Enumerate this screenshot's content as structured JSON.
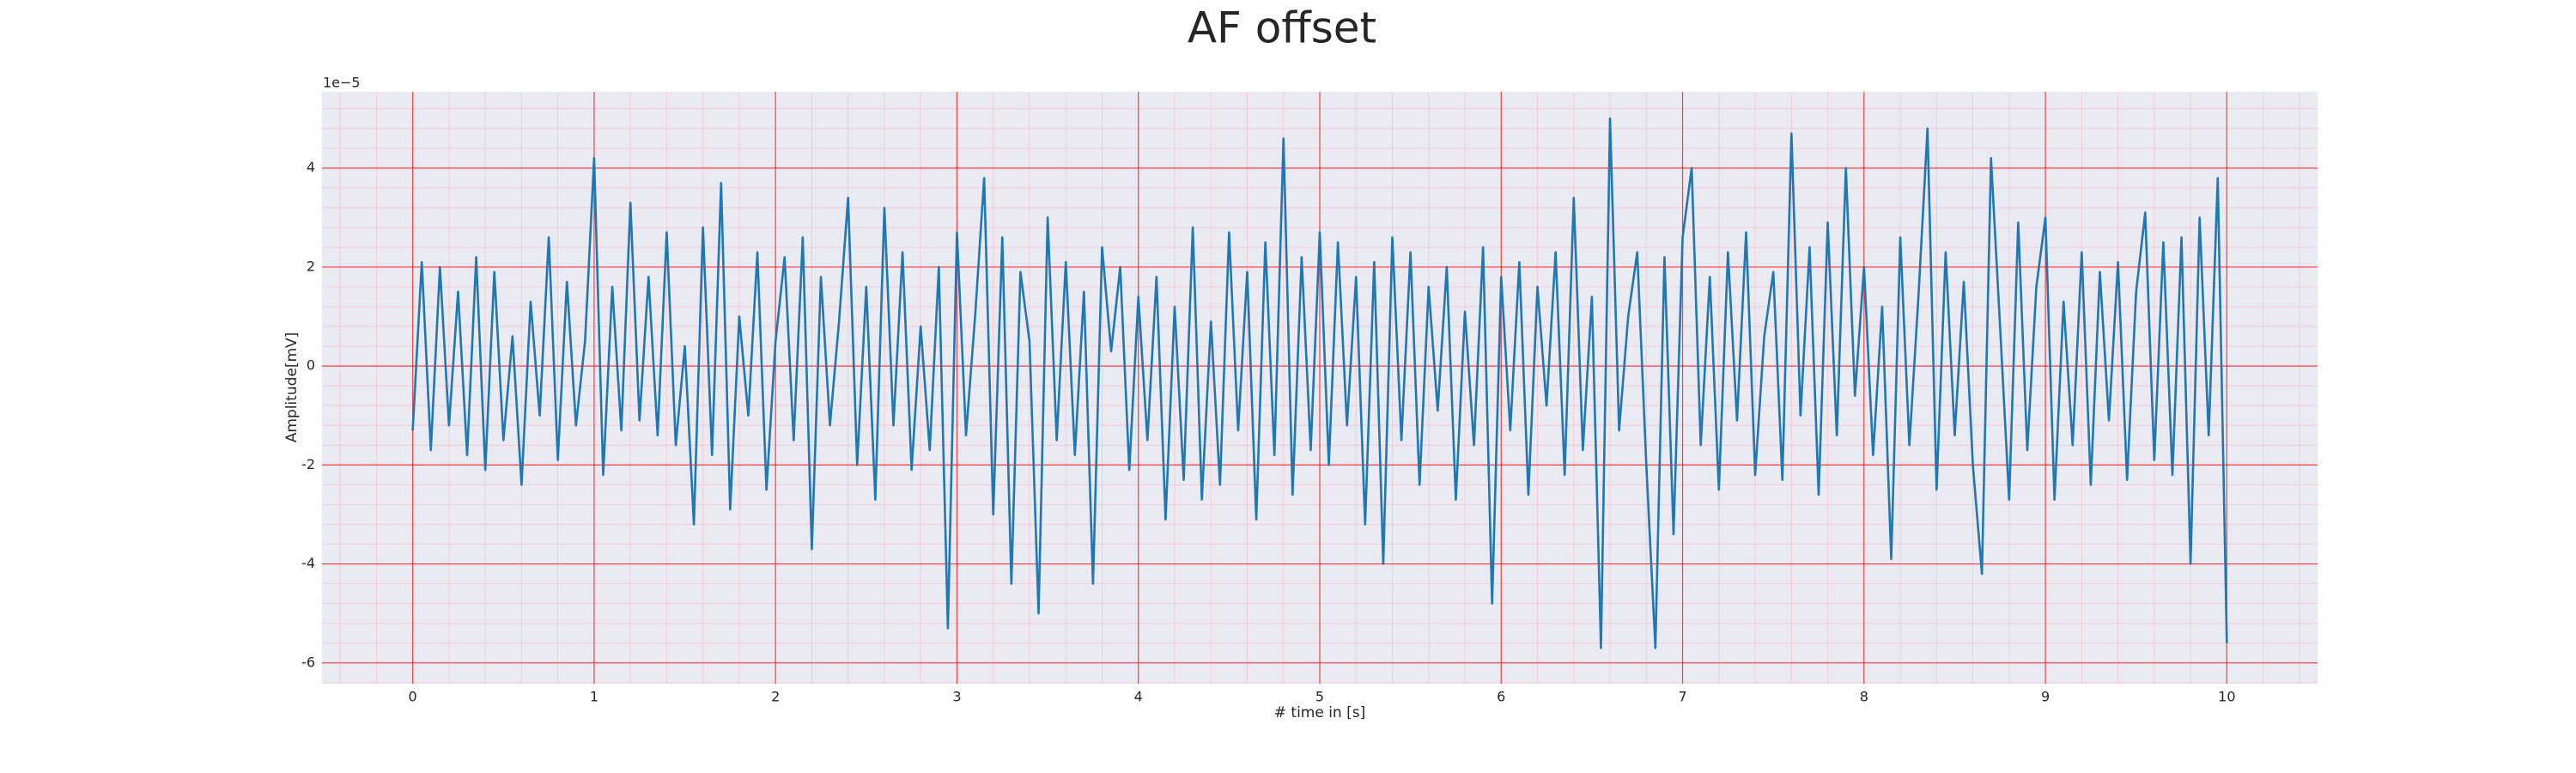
{
  "chart_data": {
    "type": "line",
    "title": "AF offset",
    "xlabel": "# time in [s]",
    "ylabel": "Amplitude[mV]",
    "y_offset_label": "1e−5",
    "xlim": [
      -0.5,
      10.5
    ],
    "ylim": [
      -6.42,
      5.54
    ],
    "xticks": [
      0,
      1,
      2,
      3,
      4,
      5,
      6,
      7,
      8,
      9,
      10
    ],
    "yticks": [
      -6,
      -4,
      -2,
      0,
      2,
      4
    ],
    "grid": true,
    "minor_grid": true,
    "grid_color": "#ff0000",
    "minor_grid_color": "#ffb6c1",
    "background": "#eaeaf2",
    "x": [
      0,
      0.05,
      0.1,
      0.15,
      0.2,
      0.25,
      0.3,
      0.35,
      0.4,
      0.45,
      0.5,
      0.55,
      0.6,
      0.65,
      0.7,
      0.75,
      0.8,
      0.85,
      0.9,
      0.95,
      1,
      1.05,
      1.1,
      1.15,
      1.2,
      1.25,
      1.3,
      1.35,
      1.4,
      1.45,
      1.5,
      1.55,
      1.6,
      1.65,
      1.7,
      1.75,
      1.8,
      1.85,
      1.9,
      1.95,
      2,
      2.05,
      2.1,
      2.15,
      2.2,
      2.25,
      2.3,
      2.35,
      2.4,
      2.45,
      2.5,
      2.55,
      2.6,
      2.65,
      2.7,
      2.75,
      2.8,
      2.85,
      2.9,
      2.95,
      3,
      3.05,
      3.1,
      3.15,
      3.2,
      3.25,
      3.3,
      3.35,
      3.4,
      3.45,
      3.5,
      3.55,
      3.6,
      3.65,
      3.7,
      3.75,
      3.8,
      3.85,
      3.9,
      3.95,
      4,
      4.05,
      4.1,
      4.15,
      4.2,
      4.25,
      4.3,
      4.35,
      4.4,
      4.45,
      4.5,
      4.55,
      4.6,
      4.65,
      4.7,
      4.75,
      4.8,
      4.85,
      4.9,
      4.95,
      5,
      5.05,
      5.1,
      5.15,
      5.2,
      5.25,
      5.3,
      5.35,
      5.4,
      5.45,
      5.5,
      5.55,
      5.6,
      5.65,
      5.7,
      5.75,
      5.8,
      5.85,
      5.9,
      5.95,
      6,
      6.05,
      6.1,
      6.15,
      6.2,
      6.25,
      6.3,
      6.35,
      6.4,
      6.45,
      6.5,
      6.55,
      6.6,
      6.65,
      6.7,
      6.75,
      6.8,
      6.85,
      6.9,
      6.95,
      7,
      7.05,
      7.1,
      7.15,
      7.2,
      7.25,
      7.3,
      7.35,
      7.4,
      7.45,
      7.5,
      7.55,
      7.6,
      7.65,
      7.7,
      7.75,
      7.8,
      7.85,
      7.9,
      7.95,
      8,
      8.05,
      8.1,
      8.15,
      8.2,
      8.25,
      8.3,
      8.35,
      8.4,
      8.45,
      8.5,
      8.55,
      8.6,
      8.65,
      8.7,
      8.75,
      8.8,
      8.85,
      8.9,
      8.95,
      9,
      9.05,
      9.1,
      9.15,
      9.2,
      9.25,
      9.3,
      9.35,
      9.4,
      9.45,
      9.5,
      9.55,
      9.6,
      9.65,
      9.7,
      9.75,
      9.8,
      9.85,
      9.9,
      9.95,
      10
    ],
    "series": [
      {
        "color": "#1f77b4",
        "values": [
          -1.3,
          2.1,
          -1.7,
          2.0,
          -1.2,
          1.5,
          -1.8,
          2.2,
          -2.1,
          1.9,
          -1.5,
          0.6,
          -2.4,
          1.3,
          -1.0,
          2.6,
          -1.9,
          1.7,
          -1.2,
          0.5,
          4.2,
          -2.2,
          1.6,
          -1.3,
          3.3,
          -1.1,
          1.8,
          -1.4,
          2.7,
          -1.6,
          0.4,
          -3.2,
          2.8,
          -1.8,
          3.7,
          -2.9,
          1.0,
          -1.0,
          2.3,
          -2.5,
          0.5,
          2.2,
          -1.5,
          2.6,
          -3.7,
          1.8,
          -1.2,
          0.9,
          3.4,
          -2.0,
          1.6,
          -2.7,
          3.2,
          -1.2,
          2.3,
          -2.1,
          0.8,
          -1.7,
          2.0,
          -5.3,
          2.7,
          -1.4,
          1.0,
          3.8,
          -3.0,
          2.6,
          -4.4,
          1.9,
          0.5,
          -5.0,
          3.0,
          -1.5,
          2.1,
          -1.8,
          1.5,
          -4.4,
          2.4,
          0.3,
          2.0,
          -2.1,
          1.4,
          -1.5,
          1.8,
          -3.1,
          1.2,
          -2.3,
          2.8,
          -2.7,
          0.9,
          -2.4,
          2.7,
          -1.3,
          1.9,
          -3.1,
          2.5,
          -1.8,
          4.6,
          -2.6,
          2.2,
          -1.7,
          2.7,
          -2.0,
          2.5,
          -1.2,
          1.8,
          -3.2,
          2.1,
          -4.0,
          2.6,
          -1.5,
          2.3,
          -2.4,
          1.6,
          -0.9,
          2.0,
          -2.7,
          1.1,
          -1.6,
          2.4,
          -4.8,
          1.8,
          -1.3,
          2.1,
          -2.6,
          1.6,
          -0.8,
          2.3,
          -2.2,
          3.4,
          -1.7,
          1.4,
          -5.7,
          5.0,
          -1.3,
          1.0,
          2.3,
          -2.0,
          -5.7,
          2.2,
          -3.4,
          2.6,
          4.0,
          -1.6,
          1.8,
          -2.5,
          2.3,
          -1.1,
          2.7,
          -2.2,
          0.6,
          1.9,
          -2.3,
          4.7,
          -1.0,
          2.4,
          -2.6,
          2.9,
          -1.4,
          4.0,
          -0.6,
          2.0,
          -1.8,
          1.2,
          -3.9,
          2.6,
          -1.6,
          1.4,
          4.8,
          -2.5,
          2.3,
          -1.4,
          1.7,
          -2.0,
          -4.2,
          4.2,
          0.8,
          -2.7,
          2.9,
          -1.7,
          1.6,
          3.0,
          -2.7,
          1.3,
          -1.6,
          2.3,
          -2.4,
          1.9,
          -1.1,
          2.1,
          -2.3,
          1.5,
          3.1,
          -1.9,
          2.5,
          -2.2,
          2.6,
          -4.0,
          3.0,
          -1.4,
          3.8,
          -5.6
        ]
      }
    ]
  }
}
